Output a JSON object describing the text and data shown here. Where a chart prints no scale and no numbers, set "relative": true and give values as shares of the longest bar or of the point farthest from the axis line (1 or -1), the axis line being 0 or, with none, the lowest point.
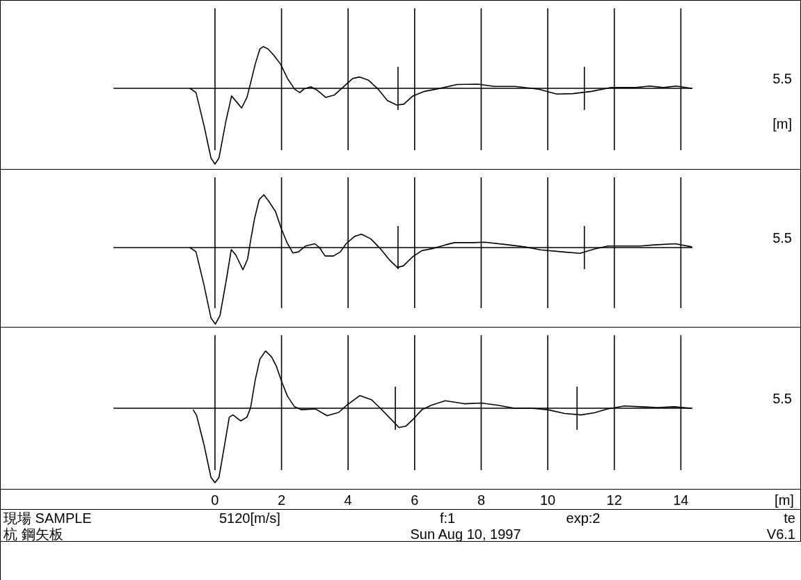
{
  "chart_data": [
    {
      "type": "line",
      "relative": true,
      "color": "#000000",
      "grid": "x",
      "tick_labels": false,
      "xlim": [
        -6.46,
        17.61
      ],
      "xticks": [
        0,
        2,
        4,
        6,
        8,
        10,
        12,
        14
      ],
      "x": [
        -0.75,
        -0.57,
        -0.33,
        -0.12,
        0,
        0.12,
        0.33,
        0.5,
        0.65,
        0.8,
        0.96,
        1.07,
        1.21,
        1.35,
        1.45,
        1.59,
        1.76,
        1.97,
        2.18,
        2.39,
        2.55,
        2.67,
        2.88,
        3.09,
        3.33,
        3.58,
        3.86,
        4.14,
        4.35,
        4.62,
        4.9,
        5.18,
        5.46,
        5.67,
        5.95,
        6.3,
        6.65,
        6.92,
        7.27,
        7.9,
        8.39,
        9.02,
        9.71,
        10.27,
        10.76,
        11.32,
        11.88,
        12.64,
        13.06,
        13.48,
        13.86,
        14.32
      ],
      "values": [
        0,
        -0.056,
        -0.49,
        -0.92,
        -1,
        -0.92,
        -0.43,
        -0.1,
        -0.18,
        -0.26,
        -0.12,
        0.07,
        0.32,
        0.52,
        0.55,
        0.52,
        0.44,
        0.32,
        0.13,
        -0.01,
        -0.056,
        -0.01,
        0.02,
        -0.03,
        -0.12,
        -0.09,
        0.02,
        0.13,
        0.15,
        0.105,
        -0.01,
        -0.16,
        -0.22,
        -0.21,
        -0.1,
        -0.04,
        -0.01,
        0.015,
        0.05,
        0.055,
        0.025,
        0.025,
        -0.01,
        -0.075,
        -0.07,
        -0.04,
        0.01,
        0.01,
        0.03,
        0.01,
        0.03,
        0
      ],
      "ref_lines": [
        {
          "axis": "y",
          "value": 0
        },
        {
          "axis": "x",
          "value": 5.5
        },
        {
          "axis": "x",
          "value": 11.1
        }
      ],
      "annotations": [
        "5.5",
        "[m]"
      ]
    },
    {
      "type": "line",
      "relative": true,
      "color": "#000000",
      "grid": "x",
      "tick_labels": false,
      "xlim": [
        -6.46,
        17.61
      ],
      "xticks": [
        0,
        2,
        4,
        6,
        8,
        10,
        12,
        14
      ],
      "x": [
        -0.75,
        -0.57,
        -0.33,
        -0.12,
        0.01,
        0.15,
        0.35,
        0.49,
        0.63,
        0.84,
        0.98,
        1.08,
        1.19,
        1.33,
        1.47,
        1.64,
        1.82,
        1.99,
        2.16,
        2.34,
        2.51,
        2.72,
        3.0,
        3.14,
        3.31,
        3.56,
        3.77,
        3.94,
        4.19,
        4.4,
        4.68,
        4.96,
        5.24,
        5.48,
        5.66,
        5.94,
        6.22,
        6.57,
        6.92,
        7.2,
        7.76,
        8.11,
        8.74,
        9.3,
        9.78,
        10.55,
        10.97,
        11.39,
        11.81,
        12.78,
        13.2,
        13.83,
        14.32
      ],
      "values": [
        0,
        -0.056,
        -0.49,
        -0.92,
        -1,
        -0.89,
        -0.4,
        -0.025,
        -0.1,
        -0.29,
        -0.15,
        0.115,
        0.38,
        0.63,
        0.69,
        0.59,
        0.47,
        0.25,
        0.07,
        -0.07,
        -0.056,
        0.02,
        0.05,
        0,
        -0.11,
        -0.11,
        -0.056,
        0.05,
        0.145,
        0.175,
        0.115,
        -0.01,
        -0.16,
        -0.26,
        -0.24,
        -0.12,
        -0.04,
        -0.01,
        0.035,
        0.065,
        0.065,
        0.07,
        0.04,
        0.01,
        -0.03,
        -0.06,
        -0.075,
        -0.02,
        0.02,
        0.02,
        0.035,
        0.05,
        0.01
      ],
      "ref_lines": [
        {
          "axis": "y",
          "value": 0
        },
        {
          "axis": "x",
          "value": 5.5
        },
        {
          "axis": "x",
          "value": 11.1
        }
      ],
      "annotations": [
        "5.5"
      ]
    },
    {
      "type": "line",
      "relative": true,
      "color": "#000000",
      "grid": "x",
      "tick_labels": "x",
      "xlim": [
        -6.46,
        17.61
      ],
      "xticks": [
        0,
        2,
        4,
        6,
        8,
        10,
        12,
        14
      ],
      "xlabel": "[m]",
      "x": [
        -0.65,
        -0.55,
        -0.33,
        -0.12,
        0,
        0.12,
        0.29,
        0.43,
        0.54,
        0.77,
        0.96,
        1.07,
        1.21,
        1.35,
        1.52,
        1.7,
        1.84,
        2.01,
        2.18,
        2.39,
        2.6,
        3.02,
        3.37,
        3.72,
        3.96,
        4.35,
        4.7,
        4.97,
        5.25,
        5.53,
        5.74,
        5.95,
        6.22,
        6.5,
        6.92,
        7.5,
        8.0,
        8.5,
        9.0,
        9.5,
        10.0,
        10.5,
        11.0,
        11.4,
        11.8,
        12.3,
        12.8,
        13.3,
        13.8,
        14.3
      ],
      "values": [
        -0.025,
        -0.1,
        -0.49,
        -0.93,
        -1,
        -0.93,
        -0.49,
        -0.12,
        -0.09,
        -0.17,
        -0.12,
        0.006,
        0.38,
        0.66,
        0.77,
        0.69,
        0.57,
        0.35,
        0.16,
        0.02,
        -0.02,
        -0.01,
        -0.1,
        -0.056,
        0.04,
        0.17,
        0.115,
        0,
        -0.13,
        -0.26,
        -0.24,
        -0.15,
        -0.02,
        0.04,
        0.1,
        0.06,
        0.07,
        0.04,
        0,
        0,
        -0.02,
        -0.07,
        -0.09,
        -0.06,
        -0.01,
        0.03,
        0.02,
        0.01,
        0.02,
        0
      ],
      "ref_lines": [
        {
          "axis": "y",
          "value": 0
        },
        {
          "axis": "x",
          "value": 5.42
        },
        {
          "axis": "x",
          "value": 10.88
        }
      ],
      "annotations": [
        "5.5",
        "現場 SAMPLE",
        "5120[m/s]",
        "f:1",
        "exp:2",
        "te",
        "杭 鋼矢板",
        "Sun Aug 10, 1997",
        "V6.1"
      ]
    }
  ]
}
